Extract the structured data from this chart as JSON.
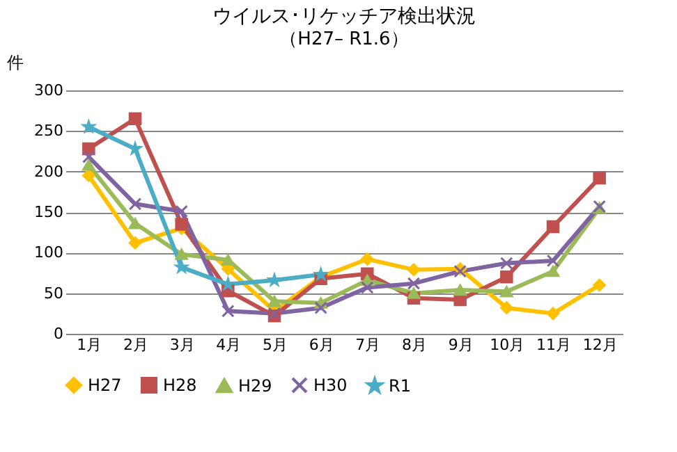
{
  "chart_data": {
    "type": "line",
    "title": "ウイルス･リケッチア検出状況",
    "subtitle": "（H27– R1.6）",
    "ylabel": "件",
    "categories": [
      "1月",
      "2月",
      "3月",
      "4月",
      "5月",
      "6月",
      "7月",
      "8月",
      "9月",
      "10月",
      "11月",
      "12月"
    ],
    "ylim": [
      0,
      300
    ],
    "yticks": [
      0,
      50,
      100,
      150,
      200,
      250,
      300
    ],
    "grid": "y",
    "legend": "bottom",
    "series": [
      {
        "name": "H27",
        "color": "#ffc000",
        "marker": "diamond",
        "values": [
          195,
          112,
          130,
          80,
          28,
          70,
          92,
          79,
          80,
          32,
          25,
          60
        ]
      },
      {
        "name": "H28",
        "color": "#c0504d",
        "marker": "square",
        "values": [
          228,
          265,
          135,
          53,
          22,
          68,
          74,
          44,
          42,
          70,
          132,
          192
        ]
      },
      {
        "name": "H29",
        "color": "#9bbb59",
        "marker": "triangle",
        "values": [
          208,
          136,
          98,
          91,
          40,
          38,
          66,
          50,
          54,
          52,
          77,
          155
        ]
      },
      {
        "name": "H30",
        "color": "#8064a2",
        "marker": "cross",
        "values": [
          218,
          160,
          151,
          28,
          25,
          32,
          57,
          62,
          77,
          87,
          90,
          157
        ]
      },
      {
        "name": "R1",
        "color": "#4bacc6",
        "marker": "star",
        "values": [
          255,
          228,
          82,
          61,
          66,
          73,
          null,
          null,
          null,
          null,
          null,
          null
        ]
      }
    ]
  }
}
